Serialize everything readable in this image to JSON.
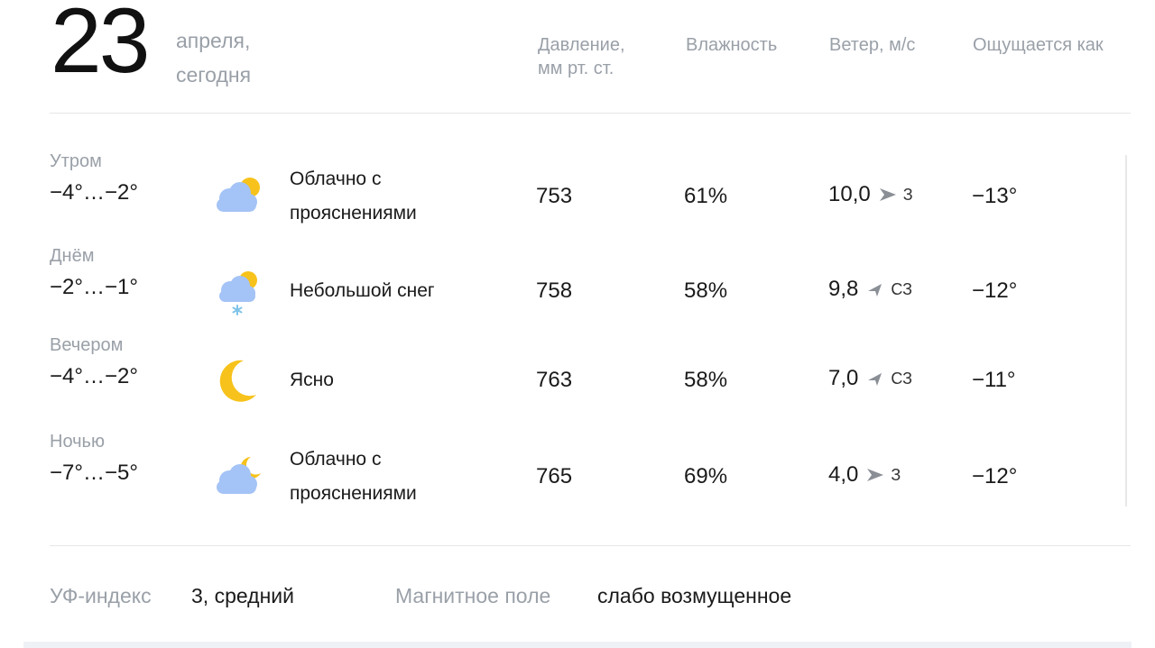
{
  "header": {
    "day": "23",
    "month_line": "апреля,",
    "today_line": "сегодня",
    "columns": {
      "pressure_line1": "Давление,",
      "pressure_line2": "мм рт. ст.",
      "humidity": "Влажность",
      "wind": "Ветер, м/с",
      "feels": "Ощущается как"
    }
  },
  "rows": [
    {
      "part": "Утром",
      "temp": "−4°…−2°",
      "icon": "cloud-sun-icon",
      "cond_line1": "Облачно с",
      "cond_line2": "прояснениями",
      "pressure": "753",
      "humidity": "61%",
      "wind_speed": "10,0",
      "wind_dir": "З",
      "wind_arrow": "arrow-east-icon",
      "feels": "−13°"
    },
    {
      "part": "Днём",
      "temp": "−2°…−1°",
      "icon": "cloud-sun-snow-icon",
      "cond_line1": "Небольшой снег",
      "cond_line2": "",
      "pressure": "758",
      "humidity": "58%",
      "wind_speed": "9,8",
      "wind_dir": "СЗ",
      "wind_arrow": "arrow-southeast-icon",
      "feels": "−12°"
    },
    {
      "part": "Вечером",
      "temp": "−4°…−2°",
      "icon": "moon-icon",
      "cond_line1": "Ясно",
      "cond_line2": "",
      "pressure": "763",
      "humidity": "58%",
      "wind_speed": "7,0",
      "wind_dir": "СЗ",
      "wind_arrow": "arrow-southeast-icon",
      "feels": "−11°"
    },
    {
      "part": "Ночью",
      "temp": "−7°…−5°",
      "icon": "cloud-moon-icon",
      "cond_line1": "Облачно с",
      "cond_line2": "прояснениями",
      "pressure": "765",
      "humidity": "69%",
      "wind_speed": "4,0",
      "wind_dir": "З",
      "wind_arrow": "arrow-east-icon",
      "feels": "−12°"
    }
  ],
  "footer": {
    "uv_label": "УФ-индекс",
    "uv_value": "3, средний",
    "magnetic_label": "Магнитное поле",
    "magnetic_value": "слабо возмущенное"
  },
  "colors": {
    "muted": "#9aa0a8",
    "text": "#1a1a1a",
    "sun": "#f7c21b",
    "cloud": "#a4c3f6",
    "snow": "#7fc4e8"
  }
}
